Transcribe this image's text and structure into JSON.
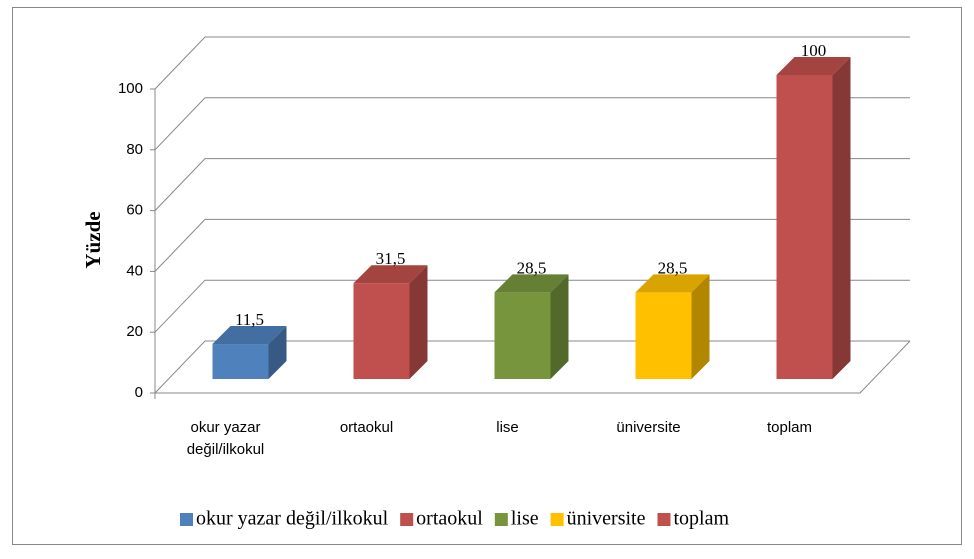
{
  "chart_data": {
    "type": "bar3d",
    "y_label": "Yüzde",
    "categories": [
      "okur yazar değil/ilkokul",
      "ortaokul",
      "lise",
      "üniversite",
      "toplam"
    ],
    "values": [
      11.5,
      31.5,
      28.5,
      28.5,
      100
    ],
    "value_labels": [
      "11,5",
      "31,5",
      "28,5",
      "28,5",
      "100"
    ],
    "colors": [
      "#4f81bd",
      "#c0504d",
      "#77953d",
      "#ffc000",
      "#c0504d"
    ],
    "ylim": [
      0,
      100
    ],
    "yticks": [
      0,
      20,
      40,
      60,
      80,
      100
    ],
    "grid": true,
    "legend": "bottom"
  }
}
